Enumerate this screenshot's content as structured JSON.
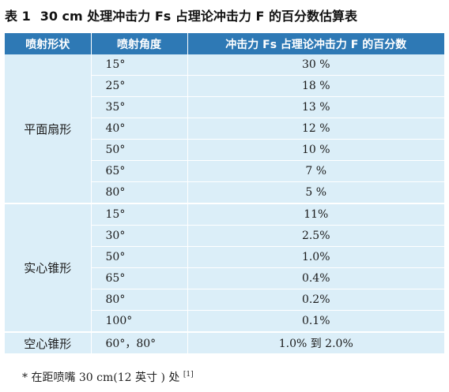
{
  "caption": {
    "label": "表 1",
    "text": "30 cm 处理冲击力 Fs 占理论冲击力 F 的百分数估算表"
  },
  "table": {
    "headers": [
      "喷射形状",
      "喷射角度",
      "冲击力 Fs 占理论冲击力 F 的百分数"
    ],
    "groups": [
      {
        "shape": "平面扇形",
        "rows": [
          {
            "angle": "15°",
            "percent": "30 %"
          },
          {
            "angle": "25°",
            "percent": "18 %"
          },
          {
            "angle": "35°",
            "percent": "13 %"
          },
          {
            "angle": "40°",
            "percent": "12 %"
          },
          {
            "angle": "50°",
            "percent": "10 %"
          },
          {
            "angle": "65°",
            "percent": "7 %"
          },
          {
            "angle": "80°",
            "percent": "5 %"
          }
        ]
      },
      {
        "shape": "实心锥形",
        "rows": [
          {
            "angle": "15°",
            "percent": "11%"
          },
          {
            "angle": "30°",
            "percent": "2.5%"
          },
          {
            "angle": "50°",
            "percent": "1.0%"
          },
          {
            "angle": "65°",
            "percent": "0.4%"
          },
          {
            "angle": "80°",
            "percent": "0.2%"
          },
          {
            "angle": "100°",
            "percent": "0.1%"
          }
        ]
      },
      {
        "shape": "空心锥形",
        "rows": [
          {
            "angle": "60°，80°",
            "percent": "1.0% 到 2.0%"
          }
        ]
      }
    ]
  },
  "footnote": {
    "text": "* 在距喷嘴 30 cm(12 英寸 ) 处",
    "ref": "[1]"
  }
}
